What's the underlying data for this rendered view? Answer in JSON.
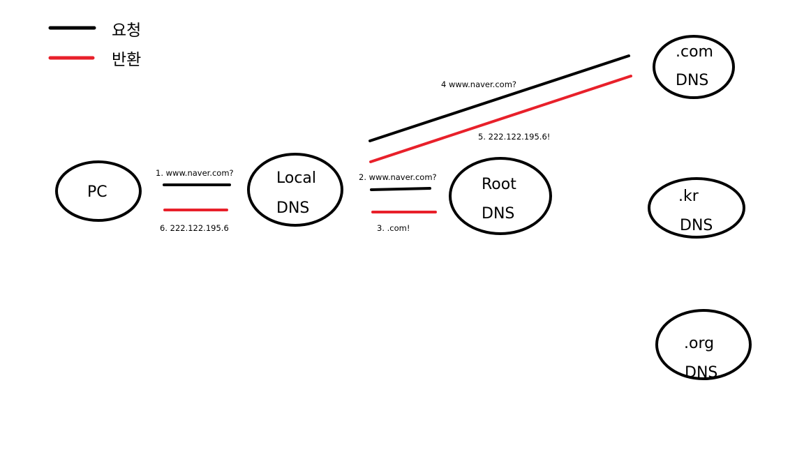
{
  "legend": {
    "request": "요청",
    "response": "반환"
  },
  "colors": {
    "request": "#000000",
    "response": "#e8202a"
  },
  "nodes": {
    "pc": {
      "line1": "PC"
    },
    "local_dns": {
      "line1": "Local",
      "line2": "DNS"
    },
    "root_dns": {
      "line1": "Root",
      "line2": "DNS"
    },
    "com_dns": {
      "line1": ".com",
      "line2": "DNS"
    },
    "kr_dns": {
      "line1": ".kr",
      "line2": "DNS"
    },
    "org_dns": {
      "line1": ".org",
      "line2": "DNS"
    }
  },
  "steps": {
    "step1": "1. www.naver.com?",
    "step2": "2. www.naver.com?",
    "step3": "3. .com!",
    "step4": "4 www.naver.com?",
    "step5": "5. 222.122.195.6!",
    "step6": "6. 222.122.195.6"
  }
}
